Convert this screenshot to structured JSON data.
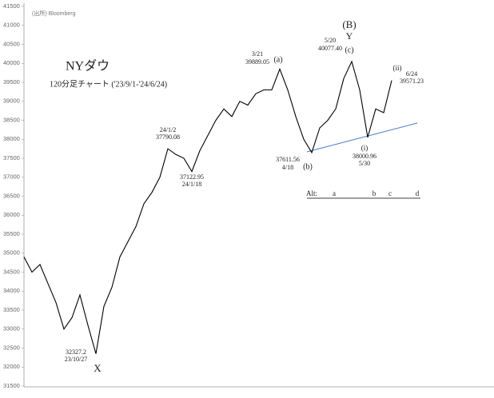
{
  "chart_data": {
    "type": "line",
    "source": "(出所) Bloomberg",
    "title": "NYダウ",
    "subtitle": "120分足チャート ('23/9/1-'24/6/24)",
    "series": [
      {
        "color": "#000000",
        "values": [
          34900,
          34500,
          34700,
          34200,
          33700,
          33000,
          33300,
          33900,
          33100,
          32350,
          33600,
          34100,
          34900,
          35300,
          35700,
          36300,
          36600,
          37000,
          37750,
          37600,
          37500,
          37150,
          37700,
          38100,
          38500,
          38800,
          38600,
          39000,
          38900,
          39200,
          39300,
          39300,
          39850,
          39300,
          38600,
          38000,
          37650,
          38300,
          38500,
          38800,
          39600,
          40050,
          39300,
          38050,
          38800,
          38700,
          39550
        ]
      }
    ],
    "ylim": [
      31500,
      41500
    ],
    "yticks": [
      31500,
      32000,
      32500,
      33000,
      33500,
      34000,
      34500,
      35000,
      35500,
      36000,
      36500,
      37000,
      37500,
      38000,
      38500,
      39000,
      39500,
      40000,
      40500,
      41000,
      41500
    ],
    "annotations": [
      "3/21",
      "39889.05",
      "(a)",
      "5/20",
      "40077.40",
      "(B)",
      "Y",
      "(c)",
      "(ii)",
      "6/24",
      "39571.23",
      "24/1/2",
      "37790.08",
      "37122.95",
      "24/1/18",
      "37611.56",
      "4/18",
      "(b)",
      "(i)",
      "38000.96",
      "5/30",
      "32327.2",
      "23/10/27",
      "X"
    ],
    "alt_row": [
      "Alt:",
      "a",
      "b",
      "c",
      "d"
    ]
  }
}
